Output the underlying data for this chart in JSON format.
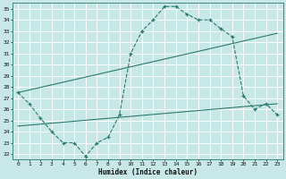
{
  "title": "",
  "xlabel": "Humidex (Indice chaleur)",
  "bg_color": "#c8e8e8",
  "grid_color": "#ffffff",
  "line_color": "#2a7a6a",
  "xlim": [
    -0.5,
    23.5
  ],
  "ylim": [
    21.5,
    35.5
  ],
  "xticks": [
    0,
    1,
    2,
    3,
    4,
    5,
    6,
    7,
    8,
    9,
    10,
    11,
    12,
    13,
    14,
    15,
    16,
    17,
    18,
    19,
    20,
    21,
    22,
    23
  ],
  "yticks": [
    22,
    23,
    24,
    25,
    26,
    27,
    28,
    29,
    30,
    31,
    32,
    33,
    34,
    35
  ],
  "series1_x": [
    0,
    1,
    2,
    3,
    4,
    5,
    6,
    7,
    8,
    9,
    10,
    11,
    12,
    13,
    14,
    15,
    16,
    17,
    18,
    19,
    20,
    21,
    22,
    23
  ],
  "series1_y": [
    27.5,
    26.5,
    25.2,
    24.0,
    23.0,
    23.0,
    21.8,
    23.0,
    23.5,
    25.5,
    31.0,
    33.0,
    34.0,
    35.2,
    35.2,
    34.5,
    34.0,
    34.0,
    33.2,
    32.5,
    27.2,
    26.0,
    26.5,
    25.5
  ],
  "series2_x": [
    0,
    23
  ],
  "series2_y": [
    24.5,
    26.5
  ],
  "series3_x": [
    0,
    23
  ],
  "series3_y": [
    27.5,
    32.8
  ]
}
